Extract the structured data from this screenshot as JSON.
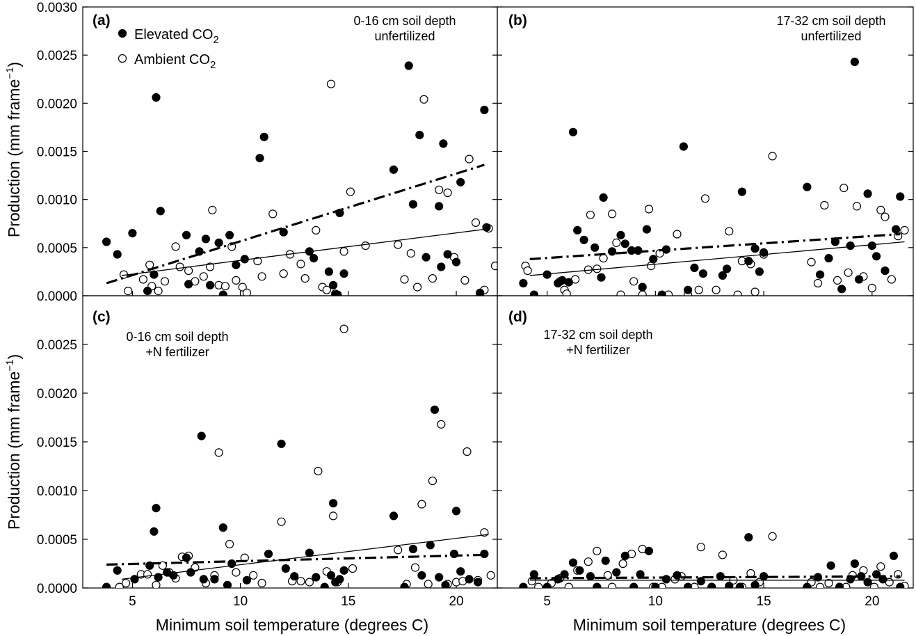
{
  "figure": {
    "ylabel": "Production (mm frame",
    "ylabel_sup": "−1",
    "ylabel_end": ")",
    "xlabel": "Minimum soil temperature (degrees C)"
  },
  "legend": {
    "elevated": "Elevated CO",
    "ambient": "Ambient CO",
    "subscript": "2"
  },
  "chart_data": [
    {
      "type": "scatter",
      "panel": "(a)",
      "annotation": [
        "0-16 cm soil depth",
        "unfertilized"
      ],
      "xlim": [
        2.7,
        21.9
      ],
      "ylim": [
        0,
        0.003
      ],
      "xticks": [
        5,
        10,
        15,
        20
      ],
      "yticks": [
        "0.0000",
        "0.0005",
        "0.0010",
        "0.0015",
        "0.0020",
        "0.0025",
        "0.0030"
      ],
      "series": [
        {
          "name": "Elevated CO2",
          "style": "filled",
          "x": [
            3.8,
            4.3,
            5.0,
            5.7,
            6.0,
            6.1,
            6.3,
            7.5,
            7.6,
            8.1,
            8.4,
            8.6,
            9.0,
            9.2,
            9.5,
            9.8,
            10.2,
            10.9,
            11.1,
            12.0,
            13.2,
            13.4,
            14.1,
            14.3,
            14.4,
            14.5,
            14.6,
            14.8,
            17.1,
            17.8,
            18.0,
            18.3,
            18.6,
            19.2,
            19.3,
            19.4,
            19.6,
            20.0,
            20.2,
            21.1,
            21.3,
            21.4
          ],
          "y": [
            0.00056,
            0.00043,
            0.00065,
            5e-05,
            0.00022,
            0.00206,
            0.00088,
            0.00063,
            0.00012,
            0.00046,
            0.00059,
            0.00011,
            0.00055,
            1e-05,
            0.00063,
            0.00032,
            0.00038,
            0.00143,
            0.00165,
            0.00066,
            0.00046,
            0.00039,
            0.00025,
            0.00011,
            1e-05,
            1e-05,
            0.00086,
            0.00023,
            0.00131,
            0.00239,
            0.00095,
            0.00167,
            0.0004,
            0.00093,
            0.0003,
            0.00158,
            0.00043,
            0.00035,
            0.00118,
            3e-05,
            0.00193,
            0.00071
          ]
        },
        {
          "name": "Ambient CO2",
          "style": "open",
          "x": [
            4.6,
            4.8,
            5.5,
            5.8,
            5.9,
            6.2,
            6.5,
            7.0,
            7.2,
            7.6,
            7.9,
            8.3,
            8.6,
            8.7,
            9.0,
            9.3,
            9.6,
            9.8,
            10.1,
            10.3,
            10.8,
            11.0,
            11.5,
            12.0,
            12.3,
            12.8,
            13.0,
            13.5,
            13.8,
            14.0,
            14.2,
            14.4,
            14.8,
            15.1,
            15.8,
            17.3,
            17.6,
            17.9,
            18.2,
            18.5,
            18.9,
            19.2,
            19.6,
            19.9,
            20.4,
            20.6,
            20.9,
            21.1,
            21.3,
            21.5,
            21.8
          ],
          "y": [
            0.00022,
            5e-05,
            0.00017,
            0.00032,
            0.0001,
            5e-05,
            0.00015,
            0.00051,
            0.0003,
            0.00026,
            0.00015,
            0.0002,
            0.0003,
            0.00089,
            0.00011,
            0.0001,
            0.00051,
            0.00016,
            9e-05,
            3e-05,
            0.00036,
            0.0002,
            0.00085,
            0.00023,
            0.00043,
            0.00033,
            0.00018,
            0.00068,
            9e-05,
            6e-05,
            0.0022,
            2e-05,
            0.00046,
            0.00108,
            0.00052,
            0.00053,
            0.00017,
            0.00044,
            9e-05,
            0.00204,
            0.00018,
            0.0011,
            0.00107,
            0.0004,
            0.00016,
            0.00142,
            0.00076,
            2e-05,
            6e-05,
            0.0007,
            0.00031
          ]
        }
      ],
      "fits": [
        {
          "series": "Elevated CO2",
          "style": "dash-dot",
          "x": [
            3.8,
            21.3
          ],
          "y": [
            0.00013,
            0.00136
          ]
        },
        {
          "series": "Ambient CO2",
          "style": "solid",
          "x": [
            4.5,
            21.3
          ],
          "y": [
            0.00021,
            0.00069
          ]
        }
      ]
    },
    {
      "type": "scatter",
      "panel": "(b)",
      "annotation": [
        "17-32 cm soil depth",
        "unfertilized"
      ],
      "xlim": [
        2.7,
        21.9
      ],
      "ylim": [
        0,
        0.003
      ],
      "xticks": [
        5,
        10,
        15,
        20
      ],
      "series": [
        {
          "name": "Elevated CO2",
          "style": "filled",
          "x": [
            3.9,
            4.4,
            5.0,
            5.5,
            5.7,
            6.0,
            6.2,
            6.4,
            6.7,
            7.2,
            7.5,
            7.6,
            8.0,
            8.4,
            8.6,
            8.9,
            9.2,
            9.4,
            9.6,
            9.9,
            10.3,
            10.5,
            11.3,
            11.5,
            11.8,
            12.2,
            13.1,
            13.3,
            14.0,
            14.3,
            14.6,
            14.8,
            15.0,
            17.0,
            17.6,
            18.0,
            18.3,
            18.6,
            19.0,
            19.2,
            19.4,
            19.8,
            20.0,
            20.2,
            20.6,
            21.1,
            21.3
          ],
          "y": [
            0.00013,
            1e-05,
            0.00022,
            0.00013,
            0.00016,
            0.00014,
            0.0017,
            0.00068,
            0.00058,
            0.0005,
            0.00019,
            0.00102,
            0.00046,
            0.00063,
            0.00054,
            0.00047,
            0.00047,
            9e-05,
            0.00069,
            0.00038,
            1e-05,
            0.00048,
            0.00155,
            6e-05,
            0.00029,
            0.00023,
            0.00021,
            0.00028,
            0.00108,
            0.00036,
            0.00049,
            0.00025,
            0.00045,
            0.00113,
            0.00022,
            0.00039,
            0.00056,
            7e-05,
            0.00052,
            0.00243,
            0.00017,
            0.00106,
            0.00052,
            0.00041,
            0.00026,
            0.00069,
            0.00103
          ]
        },
        {
          "name": "Ambient CO2",
          "style": "open",
          "x": [
            4.0,
            4.1,
            5.6,
            5.8,
            5.9,
            6.3,
            6.9,
            7.0,
            7.3,
            7.6,
            8.0,
            8.2,
            8.4,
            9.0,
            9.4,
            9.7,
            9.8,
            10.2,
            10.6,
            11.0,
            11.5,
            12.0,
            12.3,
            12.8,
            13.4,
            13.8,
            14.0,
            14.4,
            14.6,
            15.0,
            15.4,
            17.2,
            17.5,
            17.8,
            18.4,
            18.7,
            18.9,
            19.3,
            19.6,
            20.0,
            20.4,
            20.6,
            20.9,
            21.2,
            21.5
          ],
          "y": [
            0.00031,
            0.00026,
            0.00015,
            6e-05,
            2e-05,
            0.00017,
            0.00027,
            0.00084,
            0.00028,
            0.00039,
            0.00085,
            0.00055,
            1e-05,
            0.00015,
            1e-05,
            0.0009,
            0.00031,
            0.00044,
            1e-05,
            0.00064,
            1e-05,
            6e-05,
            0.00101,
            6e-05,
            0.00067,
            1e-05,
            0.00036,
            0.00033,
            4e-05,
            0.00043,
            0.00145,
            0.00035,
            0.00013,
            0.00094,
            0.00016,
            0.00112,
            0.00024,
            0.00093,
            0.0002,
            8e-05,
            0.00089,
            0.00082,
            0.00017,
            0.00062,
            0.00068
          ]
        }
      ],
      "fits": [
        {
          "series": "Elevated CO2",
          "style": "dash-dot",
          "x": [
            4.2,
            21.3
          ],
          "y": [
            0.00038,
            0.00064
          ]
        },
        {
          "series": "Ambient CO2",
          "style": "solid",
          "x": [
            4.2,
            21.5
          ],
          "y": [
            0.00021,
            0.00056
          ]
        }
      ]
    },
    {
      "type": "scatter",
      "panel": "(c)",
      "annotation": [
        "0-16 cm soil depth",
        "+N fertilizer"
      ],
      "xlim": [
        2.7,
        21.9
      ],
      "ylim": [
        0,
        0.003
      ],
      "xticks": [
        5,
        10,
        15,
        20
      ],
      "yticks": [
        "0.0000",
        "0.0005",
        "0.0010",
        "0.0015",
        "0.0020",
        "0.0025"
      ],
      "series": [
        {
          "name": "Elevated CO2",
          "style": "filled",
          "x": [
            3.8,
            4.3,
            5.1,
            5.8,
            6.0,
            6.1,
            6.2,
            6.6,
            6.9,
            7.5,
            7.7,
            8.2,
            8.3,
            8.8,
            9.2,
            9.4,
            9.6,
            10.3,
            11.3,
            11.9,
            12.1,
            12.5,
            13.2,
            13.5,
            13.9,
            14.2,
            14.3,
            14.4,
            14.6,
            14.8,
            17.1,
            17.6,
            18.0,
            18.4,
            18.8,
            19.0,
            19.2,
            19.5,
            19.9,
            20.0,
            20.2,
            20.6,
            21.0,
            21.3
          ],
          "y": [
            1e-05,
            0.00018,
            9e-05,
            0.00023,
            0.00058,
            0.00082,
            0.00011,
            0.00016,
            0.00013,
            0.00031,
            0.00016,
            0.00156,
            9e-05,
            9e-05,
            0.00062,
            3e-05,
            0.00025,
            8e-05,
            0.00035,
            0.00148,
            0.0002,
            0.00012,
            0.00036,
            0.00011,
            1e-05,
            0.00013,
            0.00087,
            6e-05,
            9e-05,
            0.00018,
            0.00074,
            1e-05,
            0.0004,
            0.00013,
            0.00044,
            0.00183,
            0.00011,
            3e-05,
            0.00035,
            0.00079,
            0.00017,
            9e-05,
            6e-05,
            0.00035
          ]
        },
        {
          "name": "Ambient CO2",
          "style": "open",
          "x": [
            4.4,
            4.7,
            5.4,
            5.7,
            6.1,
            6.4,
            6.7,
            7.0,
            7.3,
            7.6,
            7.9,
            8.4,
            8.8,
            9.0,
            9.5,
            9.8,
            10.2,
            10.6,
            11.0,
            11.9,
            12.4,
            12.8,
            13.2,
            13.6,
            14.0,
            14.3,
            14.5,
            14.8,
            15.2,
            17.3,
            17.7,
            18.1,
            18.4,
            18.7,
            18.9,
            19.3,
            19.6,
            20.0,
            20.3,
            20.5,
            21.0,
            21.3,
            21.6
          ],
          "y": [
            1e-05,
            5e-05,
            0.00014,
            0.00014,
            3e-05,
            0.00023,
            0.00016,
            0.0001,
            0.00032,
            0.00033,
            0.00021,
            5e-05,
            0.00013,
            0.00139,
            0.00045,
            0.00016,
            0.00031,
            0.00013,
            5e-05,
            0.00068,
            7e-05,
            7e-05,
            6e-05,
            0.0012,
            0.00017,
            0.00074,
            6e-05,
            0.00266,
            0.0002,
            0.00039,
            4e-05,
            0.00021,
            0.00086,
            4e-05,
            0.0011,
            0.00168,
            4e-05,
            6e-05,
            7e-05,
            0.0014,
            8e-05,
            0.00057,
            0.00013
          ]
        }
      ],
      "fits": [
        {
          "series": "Elevated CO2",
          "style": "dash-dot",
          "x": [
            3.8,
            21.3
          ],
          "y": [
            0.00024,
            0.00034
          ]
        },
        {
          "series": "Ambient CO2",
          "style": "solid",
          "x": [
            4.5,
            21.5
          ],
          "y": [
            9e-05,
            0.00055
          ]
        }
      ]
    },
    {
      "type": "scatter",
      "panel": "(d)",
      "annotation": [
        "17-32 cm soil depth",
        "+N fertilizer"
      ],
      "xlim": [
        2.7,
        21.9
      ],
      "ylim": [
        0,
        0.003
      ],
      "xticks": [
        5,
        10,
        15,
        20
      ],
      "series": [
        {
          "name": "Elevated CO2",
          "style": "filled",
          "x": [
            3.9,
            4.4,
            5.0,
            5.5,
            5.8,
            6.2,
            6.5,
            7.0,
            7.3,
            7.7,
            8.2,
            8.6,
            9.0,
            9.3,
            9.7,
            10.0,
            10.5,
            11.0,
            11.5,
            12.1,
            12.6,
            13.0,
            13.4,
            13.9,
            14.3,
            14.6,
            15.0,
            17.0,
            17.5,
            18.1,
            18.5,
            19.0,
            19.2,
            19.5,
            19.8,
            20.2,
            20.5,
            21.0,
            21.3
          ],
          "y": [
            1e-05,
            0.00014,
            1e-05,
            9e-05,
            0.00014,
            0.00026,
            0.00018,
            0.00012,
            1e-05,
            0.00028,
            0.00016,
            0.00033,
            1e-05,
            0.00014,
            0.00038,
            1e-05,
            9e-05,
            0.00013,
            1e-05,
            7e-05,
            1e-05,
            0.00012,
            2e-05,
            1e-05,
            0.00052,
            3e-05,
            0.00012,
            1e-05,
            0.00011,
            0.00023,
            1e-05,
            9e-05,
            0.00025,
            0.00012,
            6e-05,
            0.00014,
            9e-05,
            0.00033,
            1e-05
          ]
        },
        {
          "name": "Ambient CO2",
          "style": "open",
          "x": [
            4.3,
            4.6,
            5.2,
            5.6,
            6.0,
            6.4,
            6.9,
            7.3,
            7.8,
            8.0,
            8.5,
            8.9,
            9.4,
            9.9,
            10.3,
            10.9,
            11.2,
            11.8,
            12.1,
            12.6,
            13.1,
            13.6,
            14.0,
            14.4,
            14.8,
            15.4,
            17.2,
            17.6,
            18.0,
            18.5,
            18.8,
            19.1,
            19.6,
            20.1,
            20.4,
            20.8,
            21.2,
            21.5
          ],
          "y": [
            7e-05,
            1e-05,
            5e-05,
            0.0001,
            1e-05,
            0.00018,
            0.00027,
            0.00038,
            0.00013,
            1e-05,
            0.00025,
            0.00035,
            0.0004,
            1e-05,
            1e-05,
            9e-05,
            0.00012,
            1e-05,
            0.00042,
            1e-05,
            0.00034,
            8e-05,
            1e-05,
            0.00015,
            6e-05,
            0.00053,
            6e-05,
            1e-05,
            5e-05,
            1e-05,
            1e-05,
            0.00013,
            0.00018,
            1e-05,
            0.00022,
            6e-05,
            0.00014,
            2e-05
          ]
        }
      ],
      "fits": [
        {
          "series": "Elevated CO2",
          "style": "dash-dot",
          "x": [
            4.2,
            21.3
          ],
          "y": [
            0.0001,
            0.00012
          ]
        },
        {
          "series": "Ambient CO2",
          "style": "solid",
          "x": [
            4.2,
            21.5
          ],
          "y": [
            8e-05,
            8e-05
          ]
        }
      ]
    }
  ]
}
